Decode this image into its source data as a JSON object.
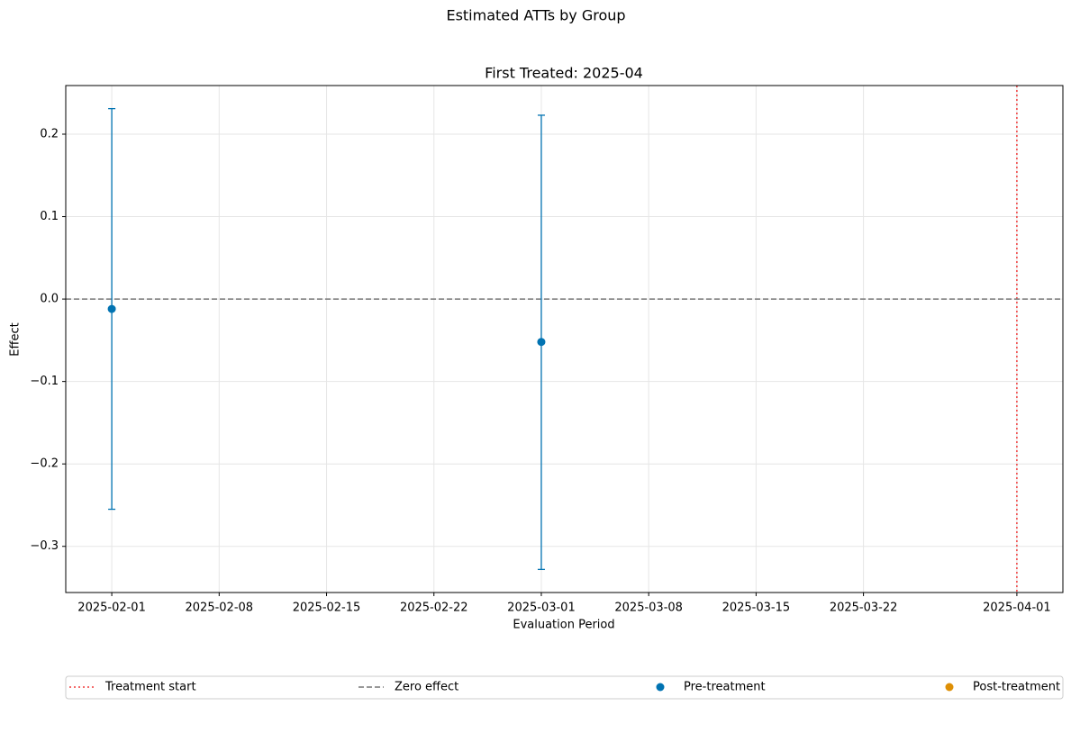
{
  "chart_data": {
    "type": "errorbar",
    "title": "Estimated ATTs by Group",
    "subtitle": "First Treated: 2025-04",
    "x_label": "Evaluation Period",
    "y_label": "Effect",
    "xlim": [
      "2025-01-29",
      "2025-04-04"
    ],
    "xticks": [
      "2025-02-01",
      "2025-02-08",
      "2025-02-15",
      "2025-02-22",
      "2025-03-01",
      "2025-03-08",
      "2025-03-15",
      "2025-03-22",
      "2025-04-01"
    ],
    "ylim": [
      -0.356,
      0.259
    ],
    "yticks": [
      {
        "value": -0.3,
        "label": "−0.3"
      },
      {
        "value": -0.2,
        "label": "−0.2"
      },
      {
        "value": -0.1,
        "label": "−0.1"
      },
      {
        "value": 0,
        "label": "0.0"
      },
      0.1,
      0.2
    ],
    "grid": true,
    "legend_position": "lower center",
    "series": [
      {
        "name": "Pre-treatment",
        "color": "#0173b2",
        "x": [
          "2025-02-01",
          "2025-03-01"
        ],
        "values": [
          -0.012,
          -0.052
        ],
        "lower": [
          -0.255,
          -0.328
        ],
        "upper": [
          0.231,
          0.223
        ]
      },
      {
        "name": "Post-treatment",
        "color": "#de8f05",
        "x": [],
        "values": [],
        "lower": [],
        "upper": []
      }
    ],
    "reference_lines": [
      {
        "name": "Treatment start",
        "x": "2025-04-01",
        "color": "#f03c3c",
        "style": "dotted"
      },
      {
        "name": "Zero effect",
        "y": 0,
        "color": "#777777",
        "style": "dashed"
      }
    ]
  }
}
